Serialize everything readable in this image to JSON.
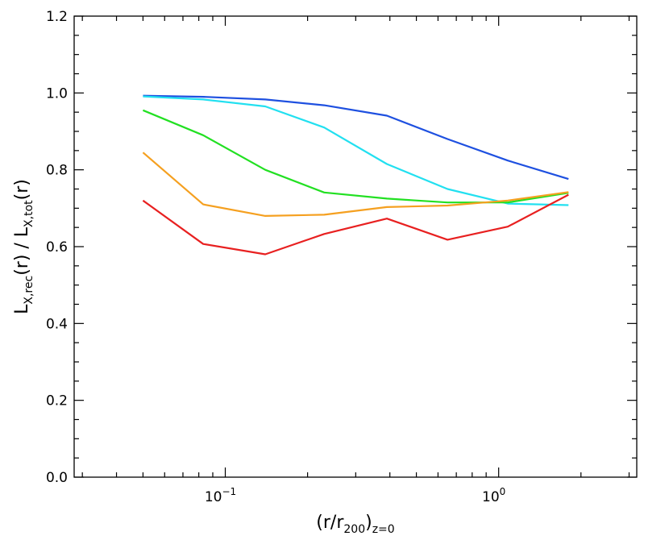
{
  "chart_data": {
    "type": "line",
    "x_scale": "log",
    "xlim": [
      0.028,
      3.2
    ],
    "ylim": [
      0.0,
      1.2
    ],
    "grid": false,
    "legend": "none",
    "xlabel": {
      "open": "(r/r",
      "sub1": "200",
      "close": ")",
      "sub2": "z=0"
    },
    "ylabel": {
      "a": "L",
      "a_sub": "X,rec",
      "b": "(r)  /  L",
      "b_sub": "X,tot",
      "c": "(r)"
    },
    "y_ticks": [
      {
        "v": 0.0,
        "label": "0.0"
      },
      {
        "v": 0.2,
        "label": "0.2"
      },
      {
        "v": 0.4,
        "label": "0.4"
      },
      {
        "v": 0.6,
        "label": "0.6"
      },
      {
        "v": 0.8,
        "label": "0.8"
      },
      {
        "v": 1.0,
        "label": "1.0"
      },
      {
        "v": 1.2,
        "label": "1.2"
      }
    ],
    "x_ticks": [
      {
        "v": 0.1,
        "base": "10",
        "exp": "−1"
      },
      {
        "v": 1.0,
        "base": "10",
        "exp": "0"
      }
    ],
    "x": [
      0.05,
      0.083,
      0.14,
      0.23,
      0.39,
      0.65,
      1.08,
      1.8
    ],
    "series": [
      {
        "color": "#1e50e0",
        "values": [
          0.993,
          0.99,
          0.983,
          0.968,
          0.941,
          0.88,
          0.824,
          0.776
        ]
      },
      {
        "color": "#22e0f0",
        "values": [
          0.991,
          0.983,
          0.965,
          0.91,
          0.815,
          0.75,
          0.712,
          0.708
        ]
      },
      {
        "color": "#22e022",
        "values": [
          0.955,
          0.89,
          0.8,
          0.741,
          0.725,
          0.715,
          0.715,
          0.74
        ]
      },
      {
        "color": "#f5a020",
        "values": [
          0.845,
          0.71,
          0.68,
          0.683,
          0.703,
          0.707,
          0.72,
          0.742
        ]
      },
      {
        "color": "#e82020",
        "values": [
          0.72,
          0.607,
          0.58,
          0.633,
          0.673,
          0.618,
          0.652,
          0.735
        ]
      }
    ]
  }
}
